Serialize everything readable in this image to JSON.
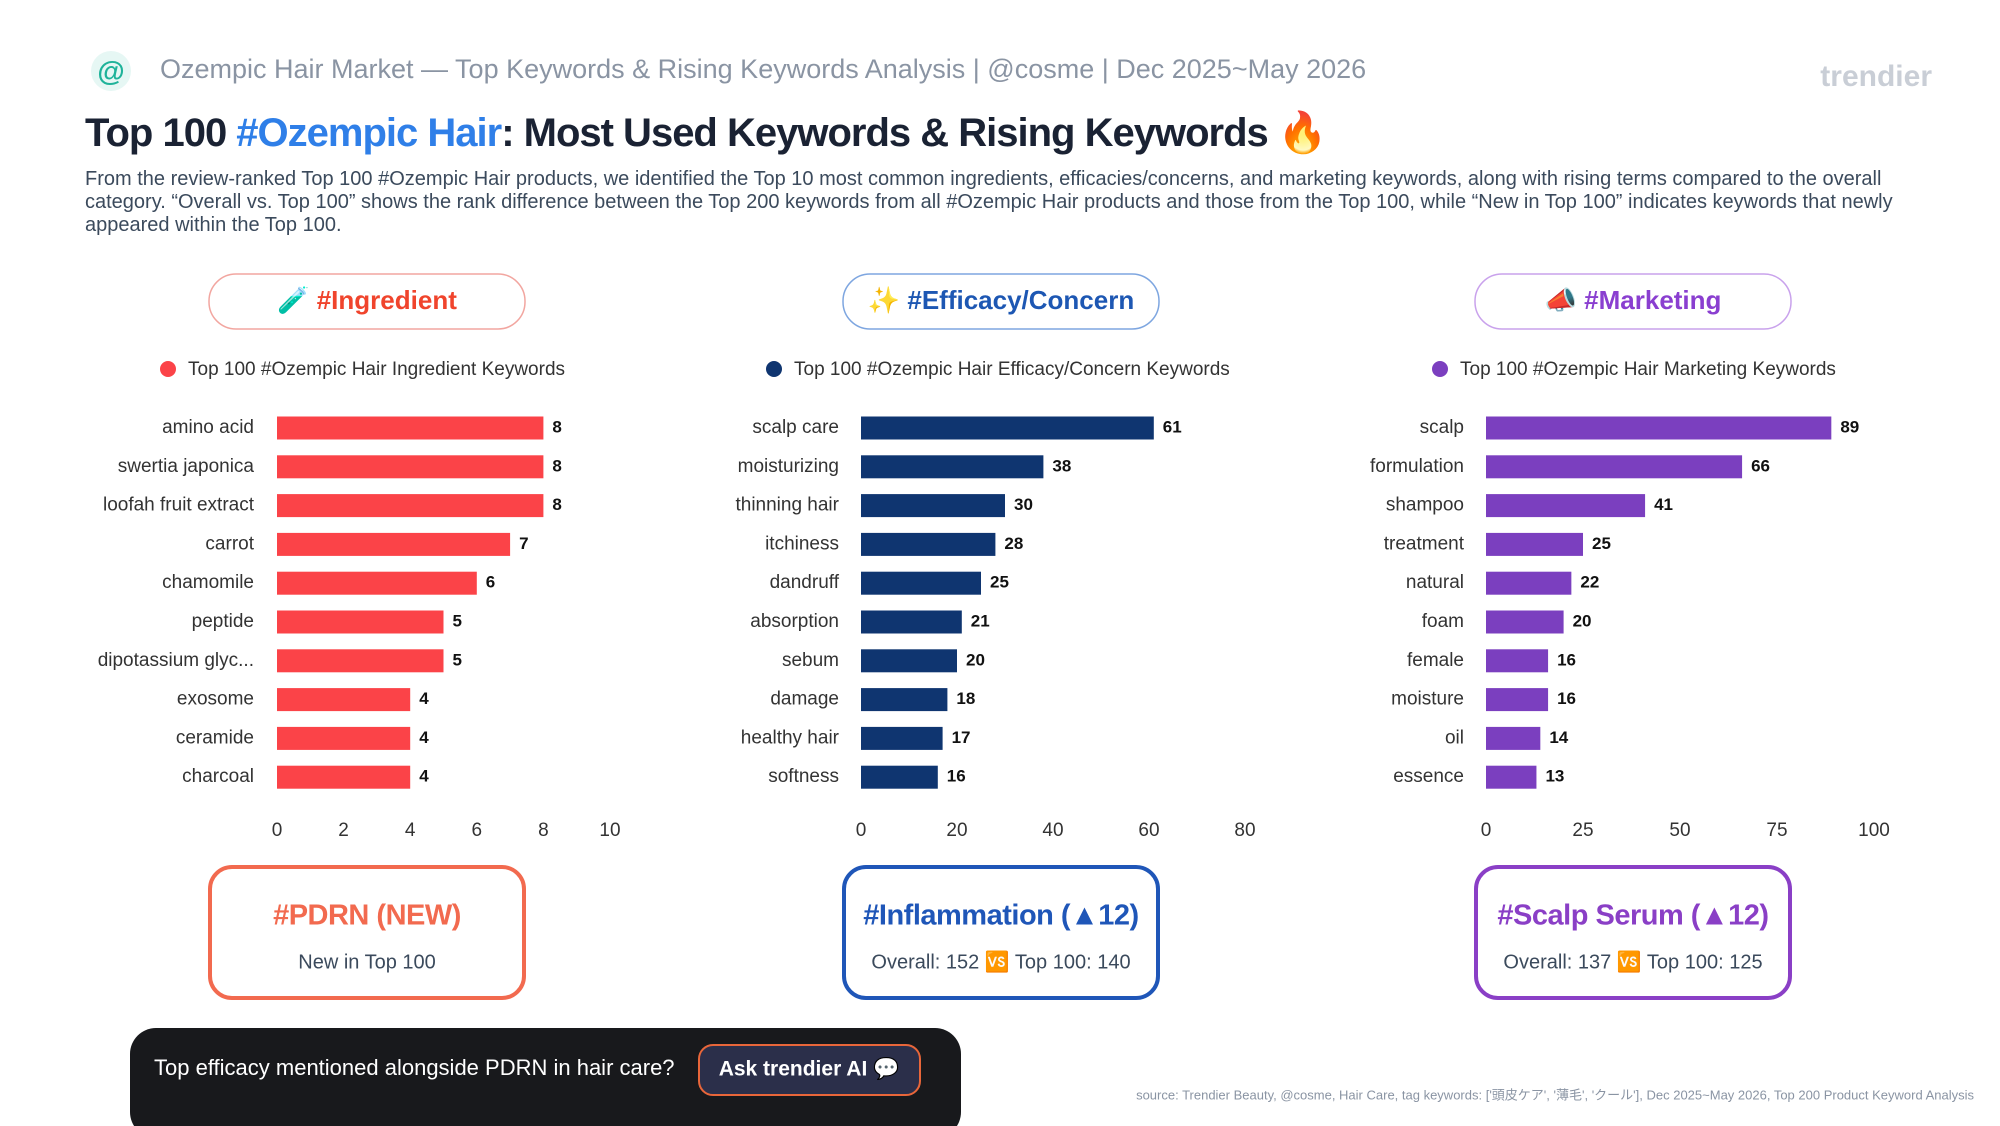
{
  "header": {
    "subtitle": "Ozempic Hair Market — Top Keywords & Rising Keywords Analysis | @cosme | Dec 2025~May 2026",
    "brand": "trendier",
    "title_parts": [
      "Top 100 ",
      "#Ozempic Hair",
      ": Most Used Keywords & Rising Keywords 🔥"
    ],
    "description": "From the review-ranked Top 100 #Ozempic Hair products, we identified the Top 10 most common ingredients, efficacies/concerns, and marketing keywords, along with rising terms compared to the overall category. “Overall vs. Top 100” shows the rank difference between the Top 200 keywords from all #Ozempic Hair products and those from the Top 100, while “New in Top 100” indicates keywords that newly appeared within the Top 100."
  },
  "chart_data": [
    {
      "type": "hbar",
      "title": "🧪 #Ingredient",
      "categories": [
        "amino acid",
        "swertia japonica",
        "loofah fruit extract",
        "carrot",
        "chamomile",
        "peptide",
        "dipotassium glyc...",
        "exosome",
        "ceramide",
        "charcoal"
      ],
      "series": [
        {
          "name": "Top 100 #Ozempic Hair Ingredient Keywords",
          "color": "#fb4348",
          "values": [
            8,
            8,
            8,
            7,
            6,
            5,
            5,
            4,
            4,
            4
          ]
        }
      ],
      "xlim": [
        0,
        10
      ],
      "xticks": [
        0,
        2,
        4,
        6,
        8,
        10
      ]
    },
    {
      "type": "hbar",
      "title": "✨ #Efficacy/Concern",
      "categories": [
        "scalp care",
        "moisturizing",
        "thinning hair",
        "itchiness",
        "dandruff",
        "absorption",
        "sebum",
        "damage",
        "healthy hair",
        "softness"
      ],
      "series": [
        {
          "name": "Top 100 #Ozempic Hair Efficacy/Concern Keywords",
          "color": "#0f3570",
          "values": [
            61,
            38,
            30,
            28,
            25,
            21,
            20,
            18,
            17,
            16
          ]
        }
      ],
      "xlim": [
        0,
        80
      ],
      "xticks": [
        0,
        20,
        40,
        60,
        80
      ]
    },
    {
      "type": "hbar",
      "title": "📣 #Marketing",
      "categories": [
        "scalp",
        "formulation",
        "shampoo",
        "treatment",
        "natural",
        "foam",
        "female",
        "moisture",
        "oil",
        "essence"
      ],
      "series": [
        {
          "name": "Top 100 #Ozempic Hair Marketing Keywords",
          "color": "#7b3fbf",
          "values": [
            89,
            66,
            41,
            25,
            22,
            20,
            16,
            16,
            14,
            13
          ]
        }
      ],
      "xlim": [
        0,
        100
      ],
      "xticks": [
        0,
        25,
        50,
        75,
        100
      ]
    }
  ],
  "highlights": [
    {
      "title": "#PDRN (NEW)",
      "detail": "New in Top 100"
    },
    {
      "title": "#Inflammation (▲12)",
      "detail": "Overall: 152 🆚 Top 100: 140"
    },
    {
      "title": "#Scalp Serum (▲12)",
      "detail": "Overall: 137 🆚 Top 100: 125"
    }
  ],
  "footer": {
    "question": "Top efficacy mentioned alongside PDRN in hair care?",
    "button": "Ask trendier AI 💬",
    "source": "source: Trendier Beauty, @cosme, Hair Care, tag keywords: ['頭皮ケア', '薄毛', 'クール'], Dec 2025~May 2026, Top 200 Product Keyword Analysis"
  }
}
